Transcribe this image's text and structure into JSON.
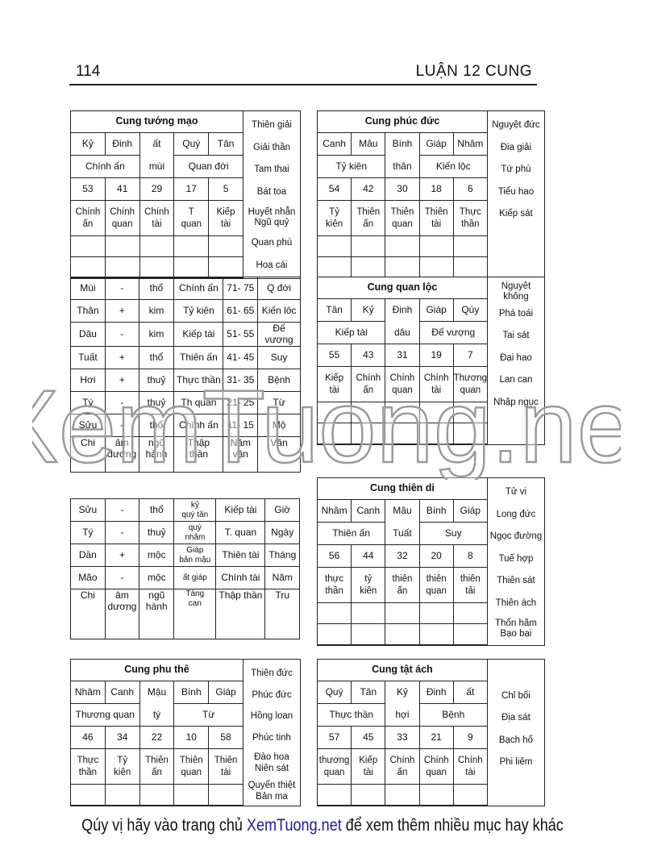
{
  "header": {
    "page_number": "114",
    "running_title": "LUẬN 12 CUNG"
  },
  "palaces": [
    {
      "title": "Cung tướng mạo",
      "stems": [
        "Kỷ",
        "Đinh",
        "ất",
        "Quý",
        "Tân"
      ],
      "branch": "mùi",
      "left_label": "Chính ấn",
      "right_label": "Quan đới",
      "ages": [
        "53",
        "41",
        "29",
        "17",
        "5"
      ],
      "gods": [
        "Chính\nấn",
        "Chính\nquan",
        "Chính\ntài",
        "T\nquan",
        "Kiếp\ntài"
      ],
      "empty_rows": 2,
      "side": [
        "Thiên giải",
        "Giải thần",
        "Tam thai",
        "Bát toa",
        "Huyết nhẫn\nNgũ quỷ",
        "Quan phù",
        "Hoa cái"
      ]
    },
    {
      "title": "Cung phúc đức",
      "stems": [
        "Canh",
        "Mâu",
        "Bính",
        "Giáp",
        "Nhâm"
      ],
      "branch": "thân",
      "left_label": "Tỷ kiên",
      "right_label": "Kiến lộc",
      "ages": [
        "54",
        "42",
        "30",
        "18",
        "6"
      ],
      "gods": [
        "Tỷ\nkiên",
        "Thiên\nấn",
        "Thiên\nquan",
        "Thiên\ntài",
        "Thực\nthần"
      ],
      "empty_rows": 2,
      "side": [
        "Nguyệt đức",
        "Đia giải",
        "Tứ phù",
        "Tiểu hao",
        "Kiếp sát"
      ]
    },
    {
      "title": "Cung quan lộc",
      "stems": [
        "Tân",
        "Kỷ",
        "Đinh",
        "Giáp",
        "Qúy"
      ],
      "branch": "dâu",
      "left_label": "Kiếp tài",
      "right_label": "Đế vượng",
      "ages": [
        "55",
        "43",
        "31",
        "19",
        "7"
      ],
      "gods": [
        "Kiếp\ntài",
        "Chính\nấn",
        "Chính\nquan",
        "Chính\ntài",
        "Thương\nquan"
      ],
      "empty_rows": 2,
      "side": [
        "Nguyêt không",
        "Phá toái",
        "Tai sát",
        "Đại hao",
        "Lan can",
        "Nhập ngục"
      ]
    },
    {
      "title": "Cung thiên di",
      "stems": [
        "Nhâm",
        "Canh",
        "Mâu",
        "Bính",
        "Giáp"
      ],
      "branch": "Tuất",
      "left_label": "Thiên ấn",
      "right_label": "Suy",
      "ages": [
        "56",
        "44",
        "32",
        "20",
        "8"
      ],
      "gods": [
        "thực\nthần",
        "tỷ\nkiên",
        "thiên\nấn",
        "thiên\nquan",
        "thiên\ntải"
      ],
      "empty_rows": 2,
      "side": [
        "Tử vi",
        "Long đức",
        "Ngọc đường",
        "Tuế hợp",
        "Thiên sát",
        "Thiên ách",
        "Thốn hãm\nBạo bại"
      ]
    },
    {
      "title": "Cung phu thê",
      "stems": [
        "Nhâm",
        "Canh",
        "Mậu",
        "Bính",
        "Giáp"
      ],
      "branch": "tý",
      "left_label": "Thương quan",
      "right_label": "Từ",
      "ages": [
        "46",
        "34",
        "22",
        "10",
        "58"
      ],
      "gods": [
        "Thực\nthần",
        "Tỷ\nkiên",
        "Thiên\nấn",
        "Thiên\nquan",
        "Thiên\ntài"
      ],
      "empty_rows": 1,
      "side": [
        "Thiên đức",
        "Phúc đức",
        "Hồng loan",
        "Phúc tinh",
        "Đào hoa\nNiên sát",
        "Quyển thiệt\nBản ma"
      ]
    },
    {
      "title": "Cung tật ách",
      "stems": [
        "Quý",
        "Tân",
        "Kỷ",
        "Đinh",
        "ất"
      ],
      "branch": "hợi",
      "left_label": "Thực thần",
      "right_label": "Bệnh",
      "ages": [
        "57",
        "45",
        "33",
        "21",
        "9"
      ],
      "gods": [
        "thương\nquan",
        "Kiếp\ntài",
        "Chính\nấn",
        "Chính\nquan",
        "Chính\ntài"
      ],
      "empty_rows": 1,
      "side": [
        "",
        "Chỉ bối",
        "Địa sát",
        "Bạch hổ",
        "Phi liêm"
      ]
    }
  ],
  "luck_table": {
    "rows": [
      [
        "Mùi",
        "-",
        "thổ",
        "Chính ấn",
        "71- 75",
        "Q  đới"
      ],
      [
        "Thân",
        "+",
        "kim",
        "Tỷ kiên",
        "61- 65",
        "Kiến lôc"
      ],
      [
        "Dâu",
        "-",
        "kim",
        "Kiếp tài",
        "51- 55",
        "Đế vương"
      ],
      [
        "Tuất",
        "+",
        "thổ",
        "Thiên ấn",
        "41- 45",
        "Suy"
      ],
      [
        "Hơi",
        "+",
        "thuỷ",
        "Thực thần",
        "31- 35",
        "Bệnh"
      ],
      [
        "Tý",
        "-",
        "thuỷ",
        "Th  quan",
        "21- 25",
        "Từ"
      ],
      [
        "Sửu",
        "-",
        "thổ",
        "Chính ấn",
        "11- 15",
        "Mộ"
      ],
      [
        "Chi",
        "âm\ndương",
        "ngũ\nhành",
        "Thập\nthần",
        "Năm\nvận",
        "Vân"
      ]
    ]
  },
  "pillar_table": {
    "rows": [
      [
        "Sửu",
        "-",
        "thổ",
        "kỷ\nquý tân",
        "Kiếp tài",
        "Giờ"
      ],
      [
        "Tý",
        "-",
        "thuỷ",
        "quý\nnhâm",
        "T. quan",
        "Ngày"
      ],
      [
        "Dần",
        "+",
        "mộc",
        "Giáp\nbản mậu",
        "Thiên tài",
        "Tháng"
      ],
      [
        "Mão",
        "-",
        "mộc",
        "ất giáp",
        "Chính tài",
        "Năm"
      ],
      [
        "Chi",
        "âm\ndương",
        "ngũ\nhành",
        "Tàng\ncan",
        "Thập thần",
        "Tru"
      ]
    ]
  },
  "watermark": "XemTuong.net",
  "footer": {
    "before": "Qúy vị hãy vào trang chủ ",
    "site": "XemTuong.net",
    "after": " để xem thêm nhiều mục hay khác"
  }
}
